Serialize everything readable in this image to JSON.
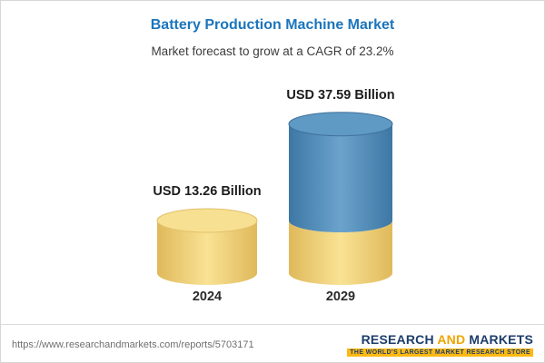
{
  "chart_data": {
    "type": "bar",
    "variant": "3d-cylinder",
    "title": "Battery Production Machine Market",
    "subtitle": "Market forecast to grow at a CAGR of 23.2%",
    "cagr": "23.2%",
    "unit": "USD Billion",
    "categories": [
      "2024",
      "2029"
    ],
    "values": [
      13.26,
      37.59
    ],
    "ylim": [
      0,
      40
    ],
    "grid": false,
    "legend": "none",
    "bars": [
      {
        "category": "2024",
        "value": 13.26,
        "label": "USD 13.26 Billion",
        "segments": [
          {
            "color_key": "yellow",
            "value": 13.26
          }
        ]
      },
      {
        "category": "2029",
        "value": 37.59,
        "label": "USD 37.59 Billion",
        "segments": [
          {
            "color_key": "yellow",
            "value": 13.26
          },
          {
            "color_key": "blue",
            "value": 24.33
          }
        ]
      }
    ],
    "colors": {
      "yellow_edge": "#dfb95b",
      "yellow_mid": "#f9e294",
      "yellow_top": "#f7e092",
      "yellow_rim": "#e3c06a",
      "blue_edge": "#3d77a4",
      "blue_mid": "#6ba3cc",
      "blue_top": "#5e9ac4",
      "blue_rim": "#41719c",
      "title": "#1b75bc"
    }
  },
  "footer": {
    "url": "https://www.researchandmarkets.com/reports/5703171"
  },
  "logo": {
    "research": "RESEARCH",
    "and": "AND",
    "markets": "MARKETS",
    "tagline": "THE WORLD'S LARGEST MARKET RESEARCH STORE",
    "navy": "#1e3d6b",
    "gold": "#f0a400",
    "tagline_bg": "#fdb913"
  }
}
